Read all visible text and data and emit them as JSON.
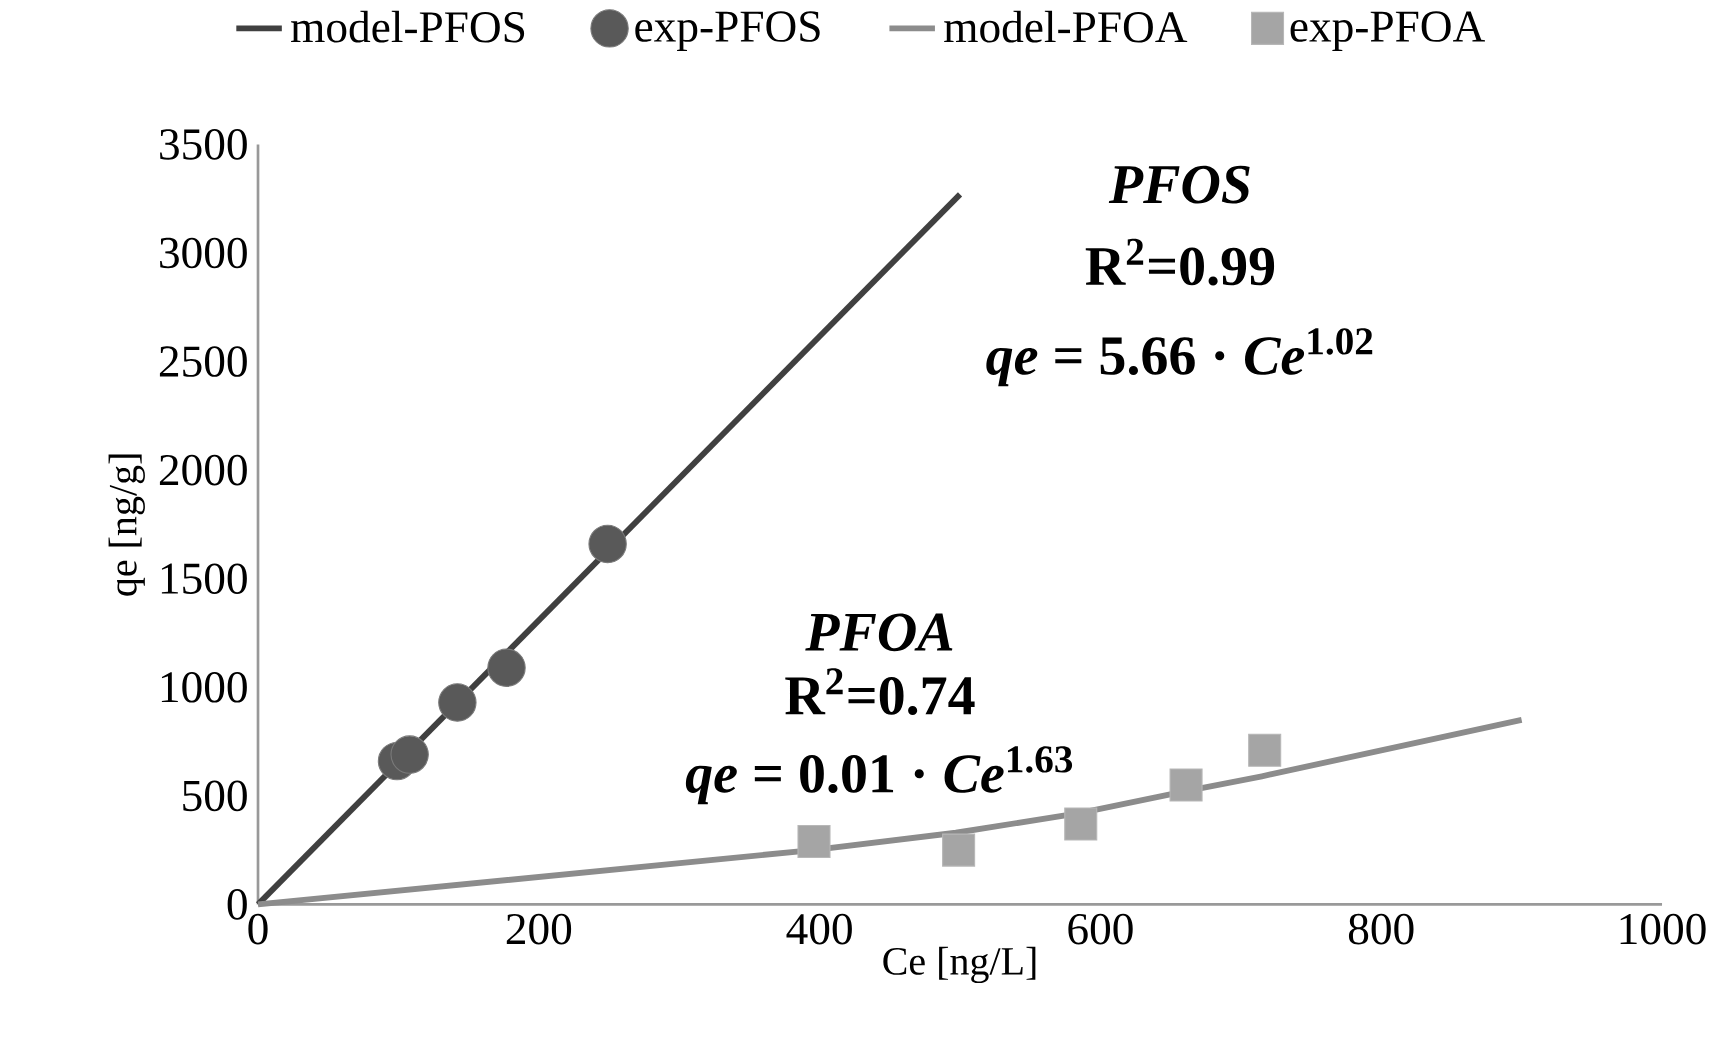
{
  "chart_data": {
    "type": "line",
    "xlabel": "Ce [ng/L]",
    "ylabel": "qe [ng/g]",
    "xlim": [
      0,
      1000
    ],
    "xticks": [
      0,
      200,
      400,
      600,
      800,
      1000
    ],
    "ylim": [
      0,
      3500
    ],
    "yticks": [
      0,
      500,
      1000,
      1500,
      2000,
      2500,
      3000,
      3500
    ],
    "grid": false,
    "legend": "top",
    "series": [
      {
        "name": "model-PFOS",
        "type": "line",
        "marker": "none",
        "color": "#404040",
        "x": [
          0,
          500
        ],
        "values": [
          0,
          3270
        ]
      },
      {
        "name": "exp-PFOS",
        "type": "scatter",
        "marker": "circle",
        "color": "#595959",
        "x": [
          99,
          108,
          142,
          177,
          249
        ],
        "values": [
          660,
          690,
          930,
          1090,
          1660
        ]
      },
      {
        "name": "model-PFOA",
        "type": "line",
        "marker": "none",
        "color": "#8c8c8c",
        "x": [
          0,
          395,
          497,
          585,
          660,
          715,
          900
        ],
        "values": [
          0,
          250,
          330,
          420,
          520,
          590,
          850
        ]
      },
      {
        "name": "exp-PFOA",
        "type": "scatter",
        "marker": "square",
        "color": "#a5a5a5",
        "x": [
          396,
          499,
          586,
          661,
          717
        ],
        "values": [
          290,
          250,
          370,
          550,
          710
        ]
      }
    ],
    "annotations": [
      "PFOS",
      "R$^{2}$=0.99",
      "*qe* = 5.66 · *Ce*$^{1.02}$",
      "PFOA",
      "R$^{2}$=0.74",
      "*qe* = 0.01 · *Ce*$^{1.63}$"
    ]
  }
}
